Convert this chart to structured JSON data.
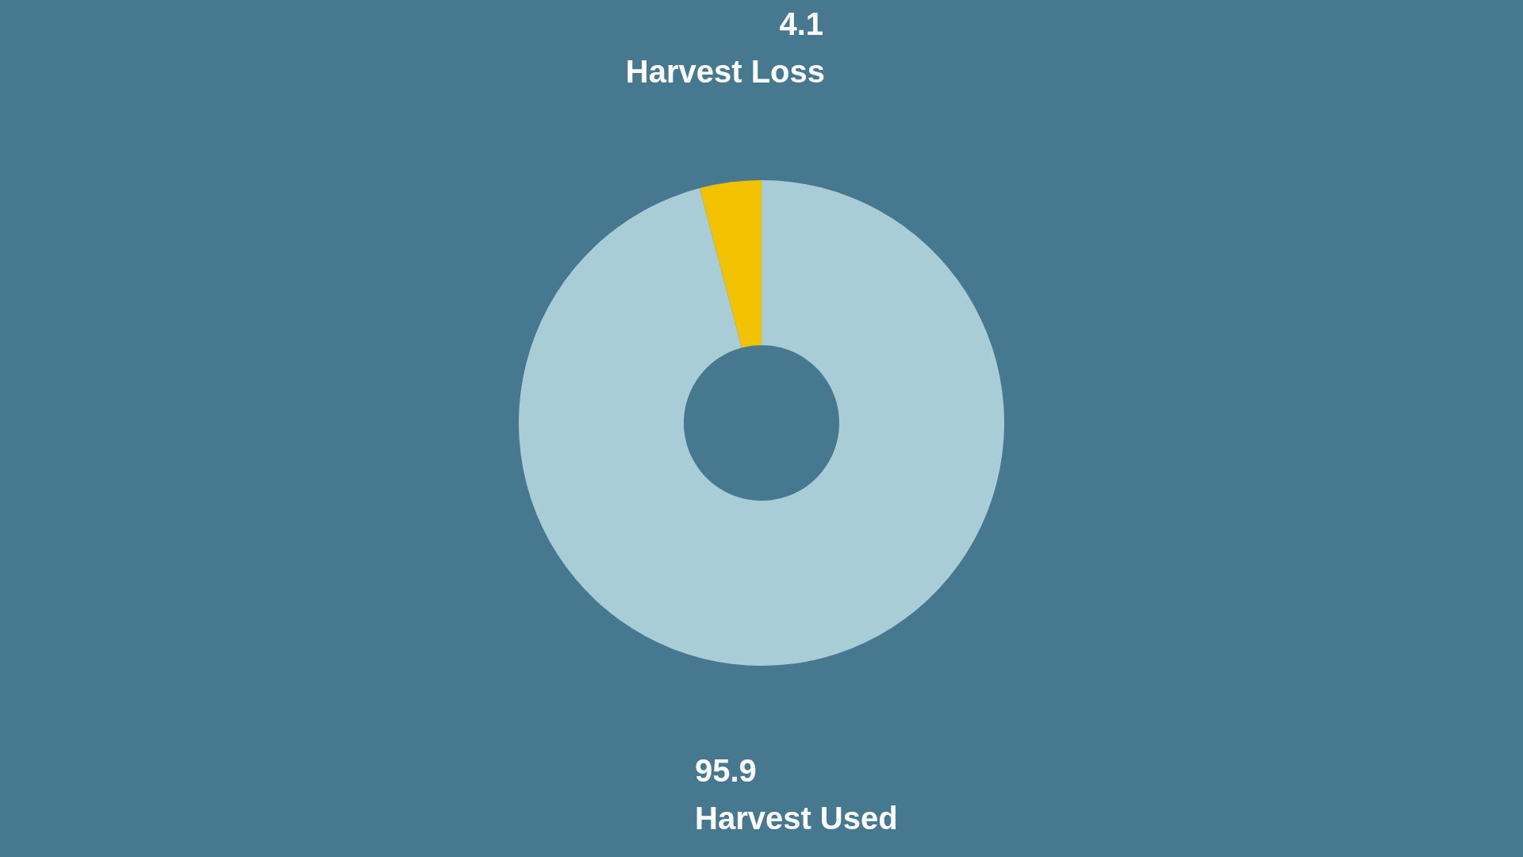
{
  "chart_data": {
    "type": "donut",
    "categories": [
      "Harvest Loss",
      "Harvest Used"
    ],
    "values": [
      4.1,
      95.9
    ],
    "colors": [
      "#f2c200",
      "#a8cdd6"
    ],
    "data_labels": true
  }
}
